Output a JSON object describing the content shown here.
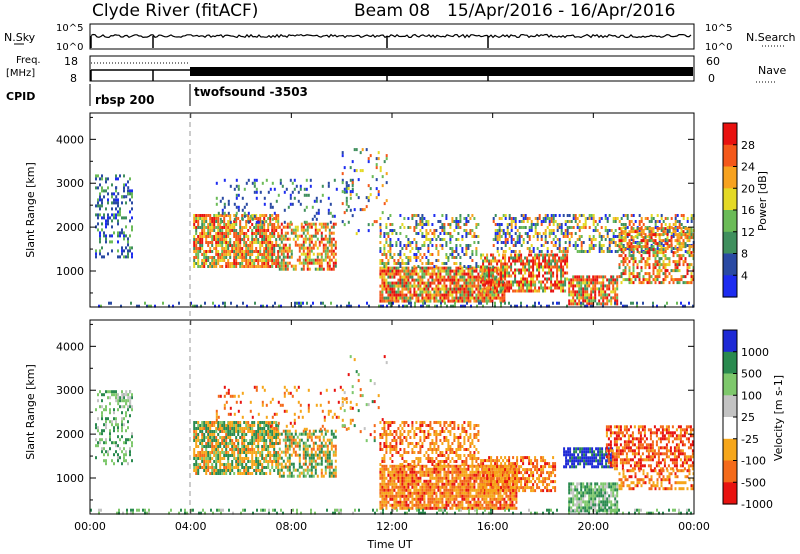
{
  "header": {
    "station": "Clyde River (fitACF)",
    "beam": "Beam 08",
    "dates": "15/Apr/2016 - 16/Apr/2016"
  },
  "status_panel": {
    "nsky_label": "N.Sky",
    "nsearch_label": "N.Search",
    "noise_ticks": [
      "10^5",
      "10^0"
    ],
    "freq_label_1": "Freq.",
    "freq_label_2": "[MHz]",
    "freq_ticks": [
      "18",
      "8"
    ],
    "nave_label": "Nave",
    "nave_ticks": [
      "60",
      "0"
    ],
    "cpid_label": "CPID",
    "cpid_modes": [
      {
        "name": "rbsp 200",
        "start_hour": 0
      },
      {
        "name": "twofsound -3503",
        "start_hour": 4
      }
    ]
  },
  "chart_data": [
    {
      "type": "heatmap",
      "title": "",
      "ylabel": "Slant Range [km]",
      "xlabel": "",
      "xlim_hours": [
        0,
        24
      ],
      "ylim": [
        180,
        4600
      ],
      "x_ticks": [
        "00:00",
        "04:00",
        "08:00",
        "12:00",
        "16:00",
        "20:00",
        "00:00"
      ],
      "y_ticks": [
        1000,
        2000,
        3000,
        4000
      ],
      "colorbar": {
        "label": "Power [dB]",
        "ticks": [
          "28",
          "24",
          "20",
          "16",
          "12",
          "8",
          "4"
        ],
        "colors": [
          "#e8110f",
          "#f4581a",
          "#f7a21f",
          "#e4d925",
          "#6bbb57",
          "#3f8f5d",
          "#2a4aa3",
          "#1d2cf0"
        ]
      },
      "regions": [
        {
          "t": [
            0.2,
            1.7
          ],
          "r": [
            1300,
            3200
          ],
          "density": 0.35,
          "palette": "low"
        },
        {
          "t": [
            1.0,
            1.6
          ],
          "r": [
            2600,
            3000
          ],
          "density": 0.3,
          "palette": "low"
        },
        {
          "t": [
            4.1,
            7.5
          ],
          "r": [
            1100,
            2300
          ],
          "density": 0.8,
          "palette": "mid"
        },
        {
          "t": [
            7.5,
            9.8
          ],
          "r": [
            1000,
            2100
          ],
          "density": 0.6,
          "palette": "mid"
        },
        {
          "t": [
            5.0,
            10.5
          ],
          "r": [
            2100,
            3100
          ],
          "density": 0.15,
          "palette": "low"
        },
        {
          "t": [
            10.0,
            11.8
          ],
          "r": [
            1800,
            3800
          ],
          "density": 0.12,
          "palette": "mixed"
        },
        {
          "t": [
            11.5,
            16.5
          ],
          "r": [
            300,
            1100
          ],
          "density": 0.85,
          "palette": "high"
        },
        {
          "t": [
            11.5,
            15.5
          ],
          "r": [
            1100,
            2300
          ],
          "density": 0.35,
          "palette": "mixed"
        },
        {
          "t": [
            15.5,
            19.0
          ],
          "r": [
            500,
            1400
          ],
          "density": 0.7,
          "palette": "high"
        },
        {
          "t": [
            16.0,
            24.0
          ],
          "r": [
            1400,
            2300
          ],
          "density": 0.45,
          "palette": "mixed"
        },
        {
          "t": [
            19.0,
            21.0
          ],
          "r": [
            250,
            900
          ],
          "density": 0.8,
          "palette": "high"
        },
        {
          "t": [
            21.0,
            24.0
          ],
          "r": [
            700,
            2000
          ],
          "density": 0.55,
          "palette": "mid"
        },
        {
          "t": [
            0.0,
            24.0
          ],
          "r": [
            180,
            300
          ],
          "density": 0.25,
          "palette": "low"
        }
      ]
    },
    {
      "type": "heatmap",
      "title": "",
      "ylabel": "Slant Range [km]",
      "xlabel": "Time UT",
      "xlim_hours": [
        0,
        24
      ],
      "ylim": [
        180,
        4600
      ],
      "x_ticks": [
        "00:00",
        "04:00",
        "08:00",
        "12:00",
        "16:00",
        "20:00",
        "00:00"
      ],
      "y_ticks": [
        1000,
        2000,
        3000,
        4000
      ],
      "colorbar": {
        "label": "Velocity [m s-1]",
        "ticks": [
          "1000",
          "500",
          "100",
          "25",
          "-25",
          "-100",
          "-500",
          "-1000"
        ],
        "colors": [
          "#1e2ad6",
          "#2a8a4f",
          "#7ec86c",
          "#c3c3c3",
          "#ffffff",
          "#f6a61a",
          "#f46a1a",
          "#e8120f"
        ]
      },
      "regions": [
        {
          "t": [
            0.2,
            1.7
          ],
          "r": [
            1300,
            3000
          ],
          "density": 0.35,
          "palette": "green"
        },
        {
          "t": [
            1.0,
            1.6
          ],
          "r": [
            2600,
            3000
          ],
          "density": 0.3,
          "palette": "grey"
        },
        {
          "t": [
            4.1,
            7.5
          ],
          "r": [
            1100,
            2300
          ],
          "density": 0.8,
          "palette": "greenorange"
        },
        {
          "t": [
            7.5,
            9.8
          ],
          "r": [
            1000,
            2100
          ],
          "density": 0.6,
          "palette": "greenorange"
        },
        {
          "t": [
            5.0,
            10.5
          ],
          "r": [
            2100,
            3100
          ],
          "density": 0.12,
          "palette": "orange"
        },
        {
          "t": [
            10.0,
            11.8
          ],
          "r": [
            1800,
            3800
          ],
          "density": 0.1,
          "palette": "mixed"
        },
        {
          "t": [
            11.5,
            17.0
          ],
          "r": [
            300,
            1300
          ],
          "density": 0.85,
          "palette": "orange"
        },
        {
          "t": [
            11.5,
            15.5
          ],
          "r": [
            1300,
            2300
          ],
          "density": 0.45,
          "palette": "orange"
        },
        {
          "t": [
            15.5,
            18.5
          ],
          "r": [
            700,
            1500
          ],
          "density": 0.6,
          "palette": "orange"
        },
        {
          "t": [
            19.0,
            21.0
          ],
          "r": [
            250,
            900
          ],
          "density": 0.85,
          "palette": "green"
        },
        {
          "t": [
            18.8,
            20.8
          ],
          "r": [
            1200,
            1700
          ],
          "density": 0.7,
          "palette": "blue"
        },
        {
          "t": [
            20.5,
            24.0
          ],
          "r": [
            1200,
            2200
          ],
          "density": 0.6,
          "palette": "red"
        },
        {
          "t": [
            21.0,
            24.0
          ],
          "r": [
            700,
            1200
          ],
          "density": 0.5,
          "palette": "orange"
        },
        {
          "t": [
            0.0,
            24.0
          ],
          "r": [
            180,
            300
          ],
          "density": 0.25,
          "palette": "green"
        }
      ]
    }
  ]
}
